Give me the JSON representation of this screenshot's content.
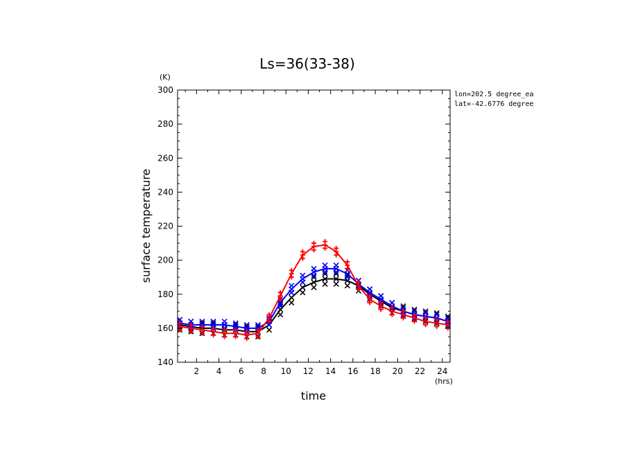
{
  "chart_data": {
    "type": "line",
    "title": "Ls=36(33-38)",
    "xlabel": "time",
    "ylabel": "surface temperature",
    "x_unit": "(hrs)",
    "y_unit": "(K)",
    "xlim": [
      0.3,
      24.7
    ],
    "ylim": [
      140,
      300
    ],
    "x_ticks": [
      2,
      4,
      6,
      8,
      10,
      12,
      14,
      16,
      18,
      20,
      22,
      24
    ],
    "y_ticks": [
      140,
      160,
      180,
      200,
      220,
      240,
      260,
      280,
      300
    ],
    "annotations": [
      "lon=202.5 degree_ea",
      "lat=-42.6776 degree"
    ],
    "grid": false,
    "series": [
      {
        "color": "#000000",
        "marker": "x",
        "x": [
          0.5,
          1.5,
          2.5,
          3.5,
          4.5,
          5.5,
          6.5,
          7.5,
          8.5,
          9.5,
          10.5,
          11.5,
          12.5,
          13.5,
          14.5,
          15.5,
          16.5,
          17.5,
          18.5,
          19.5,
          20.5,
          21.5,
          22.5,
          23.5,
          24.5
        ],
        "values": [
          162,
          161,
          160,
          160,
          159,
          159,
          158,
          158,
          162,
          171,
          178,
          184,
          187,
          189,
          189,
          188,
          185,
          180,
          176,
          172,
          170,
          168,
          167,
          166,
          164
        ],
        "scatter_spread": [
          -3,
          3
        ]
      },
      {
        "color": "#0000ff",
        "marker": "x",
        "x": [
          0.5,
          1.5,
          2.5,
          3.5,
          4.5,
          5.5,
          6.5,
          7.5,
          8.5,
          9.5,
          10.5,
          11.5,
          12.5,
          13.5,
          14.5,
          15.5,
          16.5,
          17.5,
          18.5,
          19.5,
          20.5,
          21.5,
          22.5,
          23.5,
          24.5
        ],
        "values": [
          163,
          162,
          162,
          162,
          162,
          161,
          160,
          160,
          164,
          175,
          183,
          189,
          193,
          195,
          195,
          192,
          186,
          181,
          177,
          173,
          170,
          168,
          167,
          166,
          164
        ],
        "scatter_spread": [
          -2,
          2
        ]
      },
      {
        "color": "#ff0000",
        "marker": "+",
        "x": [
          0.5,
          1.5,
          2.5,
          3.5,
          4.5,
          5.5,
          6.5,
          7.5,
          8.5,
          9.5,
          10.5,
          11.5,
          12.5,
          13.5,
          14.5,
          15.5,
          16.5,
          17.5,
          18.5,
          19.5,
          20.5,
          21.5,
          22.5,
          23.5,
          24.5
        ],
        "values": [
          161,
          160,
          159,
          158,
          157,
          157,
          156,
          157,
          166,
          179,
          192,
          203,
          208,
          209,
          205,
          197,
          185,
          177,
          173,
          170,
          168,
          166,
          164,
          163,
          162
        ],
        "scatter_spread": [
          -2,
          2
        ]
      }
    ]
  }
}
